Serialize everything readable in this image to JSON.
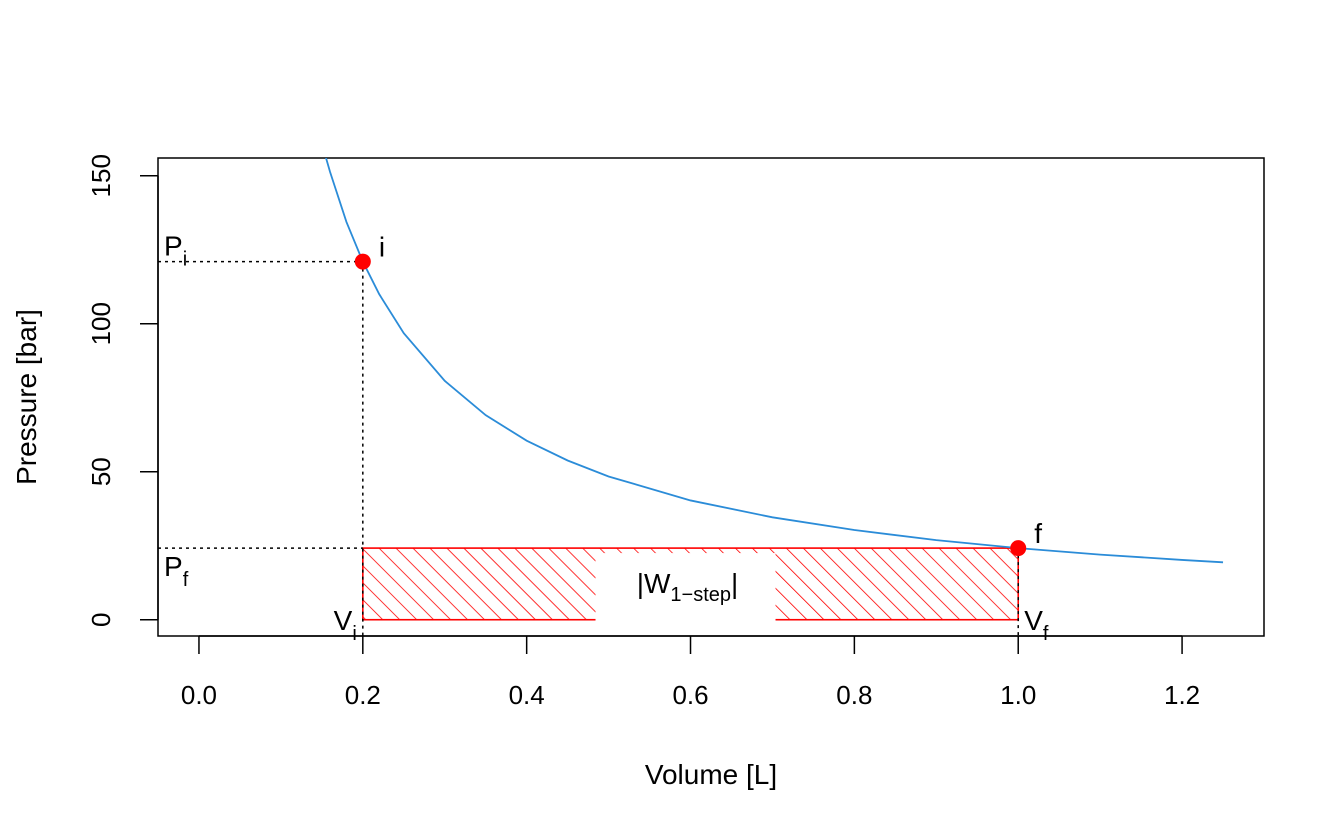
{
  "chart_data": {
    "type": "line",
    "xlabel": "Volume [L]",
    "ylabel": "Pressure [bar]",
    "xlim": [
      -0.05,
      1.3
    ],
    "ylim": [
      -5.5,
      156
    ],
    "x_ticks": [
      "0.0",
      "0.2",
      "0.4",
      "0.6",
      "0.8",
      "1.0",
      "1.2"
    ],
    "y_ticks": [
      "0",
      "50",
      "100",
      "150"
    ],
    "grid": false,
    "series": [
      {
        "kind": "curve",
        "color": "#2B8CD8",
        "x": [
          0.155,
          0.16,
          0.18,
          0.2,
          0.22,
          0.25,
          0.3,
          0.35,
          0.4,
          0.45,
          0.5,
          0.6,
          0.7,
          0.8,
          0.9,
          1.0,
          1.1,
          1.2,
          1.25
        ],
        "y": [
          156.1,
          151.3,
          134.4,
          121.0,
          110.0,
          96.8,
          80.7,
          69.1,
          60.5,
          53.8,
          48.4,
          40.3,
          34.6,
          30.3,
          26.9,
          24.2,
          22.0,
          20.2,
          19.4
        ]
      }
    ],
    "points": [
      {
        "label": "i",
        "x": 0.2,
        "y": 121.0,
        "color": "#FF0000"
      },
      {
        "label": "f",
        "x": 1.0,
        "y": 24.2,
        "color": "#FF0000"
      }
    ],
    "shaded_region": {
      "x": [
        0.2,
        1.0
      ],
      "y": [
        0,
        24.2
      ],
      "color": "#FF0000",
      "pattern": "hatched",
      "label_main": "|W",
      "label_sub": "1−step",
      "label_end": "|"
    },
    "reference_labels": {
      "Pi": {
        "main": "P",
        "sub": "i"
      },
      "Pf": {
        "main": "P",
        "sub": "f"
      },
      "Vi": {
        "main": "V",
        "sub": "i"
      },
      "Vf": {
        "main": "V",
        "sub": "f"
      }
    }
  }
}
